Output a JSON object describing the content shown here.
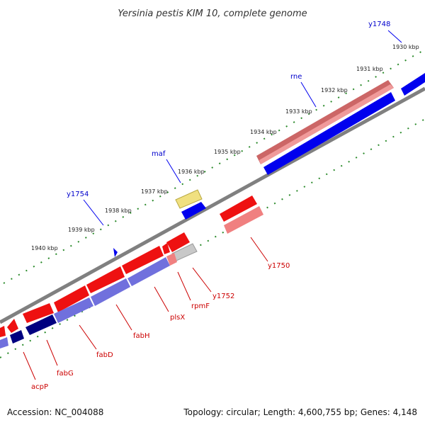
{
  "title": "Yersinia pestis KIM 10, complete genome",
  "footer": {
    "accession": "Accession: NC_004088",
    "summary": "Topology: circular; Length: 4,600,755 bp; Genes: 4,148"
  },
  "scale": {
    "ticks": [
      "1930 kbp",
      "1931 kbp",
      "1932 kbp",
      "1933 kbp",
      "1934 kbp",
      "1935 kbp",
      "1936 kbp",
      "1937 kbp",
      "1938 kbp",
      "1939 kbp",
      "1940 kbp"
    ]
  },
  "gene_labels": {
    "forward": [
      "y1748",
      "rne",
      "maf",
      "y1754"
    ],
    "reverse": [
      "y1750",
      "y1752",
      "rpmF",
      "plsX",
      "fabH",
      "fabD",
      "fabG",
      "acpP"
    ]
  },
  "colors": {
    "forward_strand": "#0000ee",
    "reverse_strand": "#ee0000",
    "backbone": "#808080",
    "scale_ticks": "#2a8a2a",
    "forward_label": "#0000cc",
    "reverse_label": "#cc0000"
  }
}
